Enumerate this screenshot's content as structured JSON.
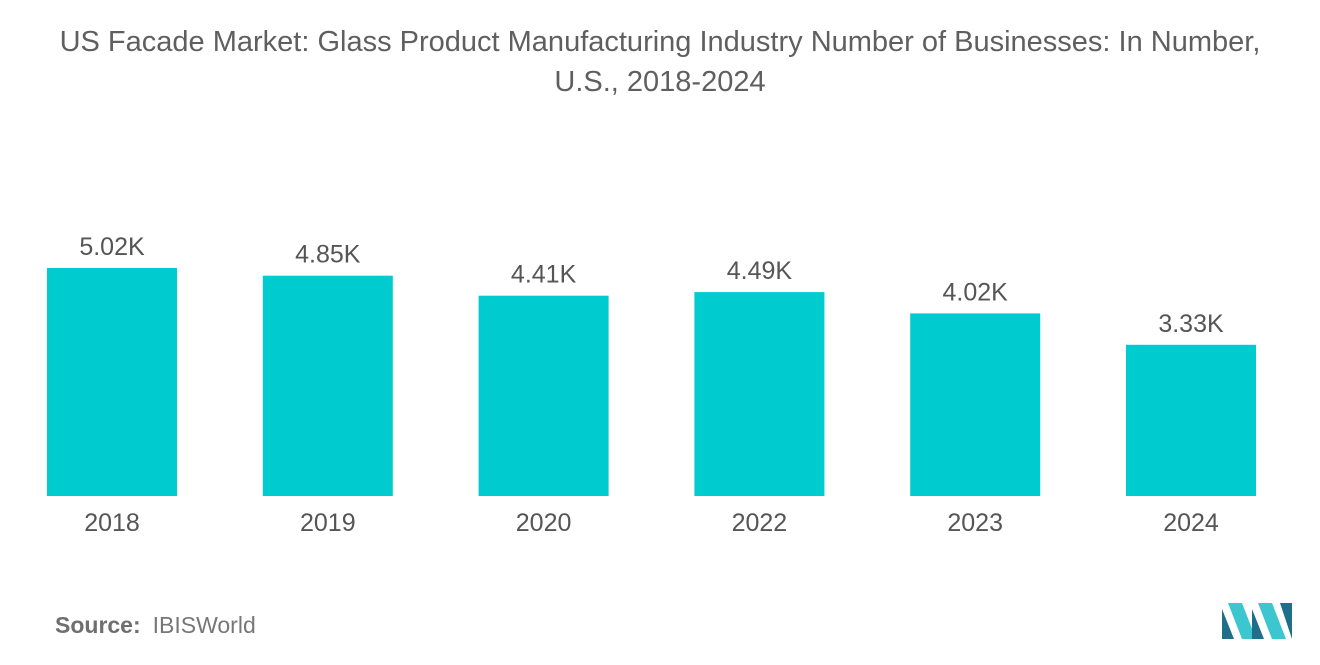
{
  "title_lines": [
    "US Facade Market: Glass Product Manufacturing Industry Number of Businesses: In Number,",
    "U.S., 2018-2024"
  ],
  "source": {
    "label": "Source:",
    "value": "IBISWorld"
  },
  "colors": {
    "bar": "#00cccf",
    "text": "#555555",
    "logo_dark": "#1f6f8a",
    "logo_light": "#3cc6cf"
  },
  "logo": {
    "icon": "mordor-intelligence-logo-icon"
  },
  "chart_data": {
    "type": "bar",
    "title": "US Facade Market: Glass Product Manufacturing Industry Number of Businesses: In Number, U.S., 2018-2024",
    "categories": [
      "2018",
      "2019",
      "2020",
      "2022",
      "2023",
      "2024"
    ],
    "values": [
      5.02,
      4.85,
      4.41,
      4.49,
      4.02,
      3.33
    ],
    "labels": [
      "5.02K",
      "4.85K",
      "4.41K",
      "4.49K",
      "4.02K",
      "3.33K"
    ],
    "unit": "thousand businesses",
    "xlabel": "",
    "ylabel": "",
    "ylim": [
      0,
      5.02
    ],
    "grid": false,
    "legend": "none"
  }
}
